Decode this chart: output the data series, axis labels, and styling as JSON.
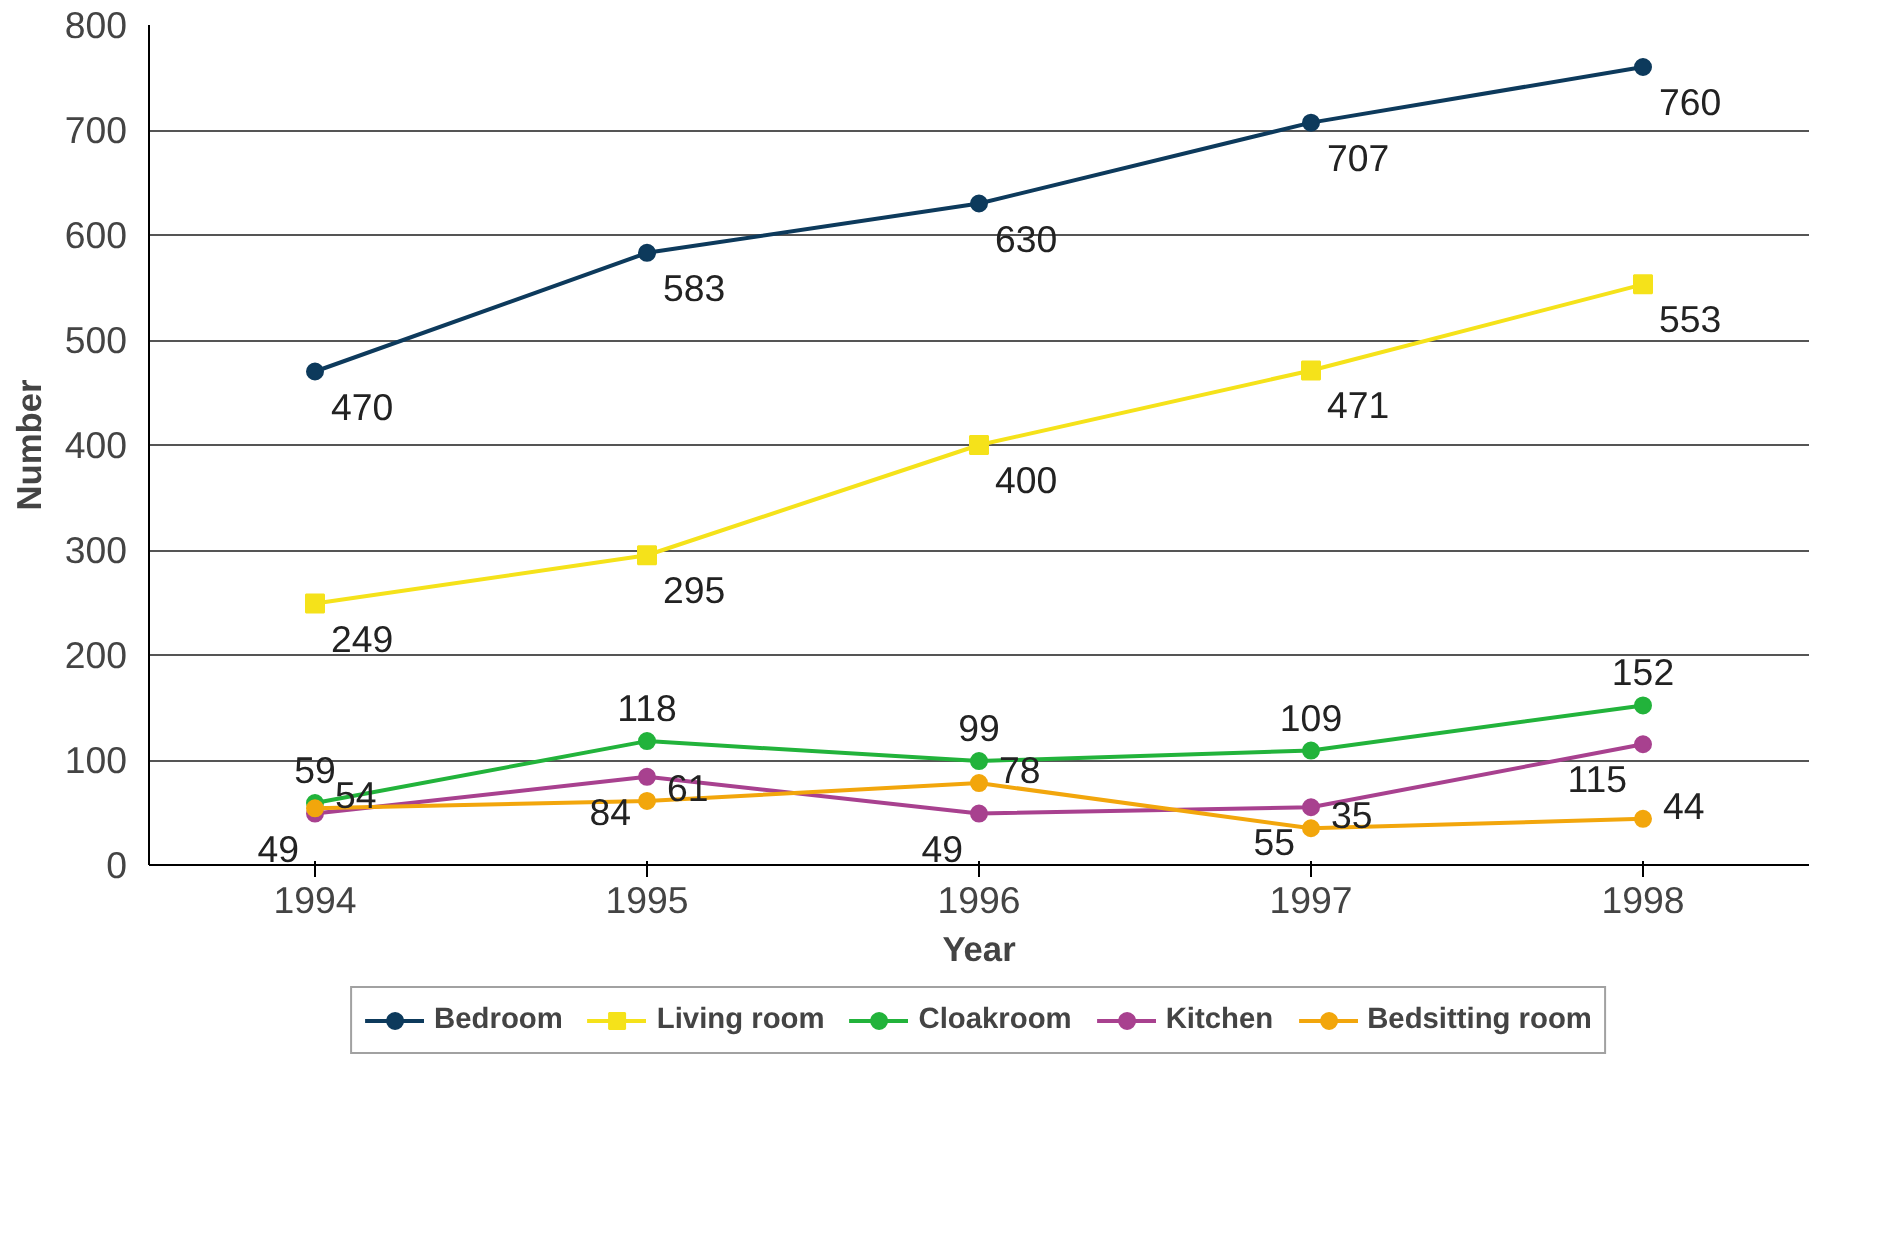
{
  "chart_data": {
    "type": "line",
    "xlabel": "Year",
    "ylabel": "Number",
    "x": [
      1994,
      1995,
      1996,
      1997,
      1998
    ],
    "xlim": [
      1993.5,
      1998.5
    ],
    "xticks": [
      1994,
      1995,
      1996,
      1997,
      1998
    ],
    "ylim": [
      0,
      800
    ],
    "yticks": [
      0,
      100,
      200,
      300,
      400,
      500,
      600,
      700,
      800
    ],
    "grid": "y",
    "legend": "bottom",
    "data_labels": true,
    "marker": "circle",
    "series": [
      {
        "name": "Bedroom",
        "color": "#0d3a5c",
        "values": [
          470,
          583,
          630,
          707,
          760
        ]
      },
      {
        "name": "Living room",
        "color": "#f5e21a",
        "values": [
          249,
          295,
          400,
          471,
          553
        ],
        "marker": "square"
      },
      {
        "name": "Cloakroom",
        "color": "#22b33b",
        "values": [
          59,
          118,
          99,
          109,
          152
        ]
      },
      {
        "name": "Kitchen",
        "color": "#a8418f",
        "values": [
          49,
          84,
          49,
          55,
          115
        ]
      },
      {
        "name": "Bedsitting room",
        "color": "#f2a60c",
        "values": [
          54,
          61,
          78,
          35,
          44
        ]
      }
    ]
  }
}
